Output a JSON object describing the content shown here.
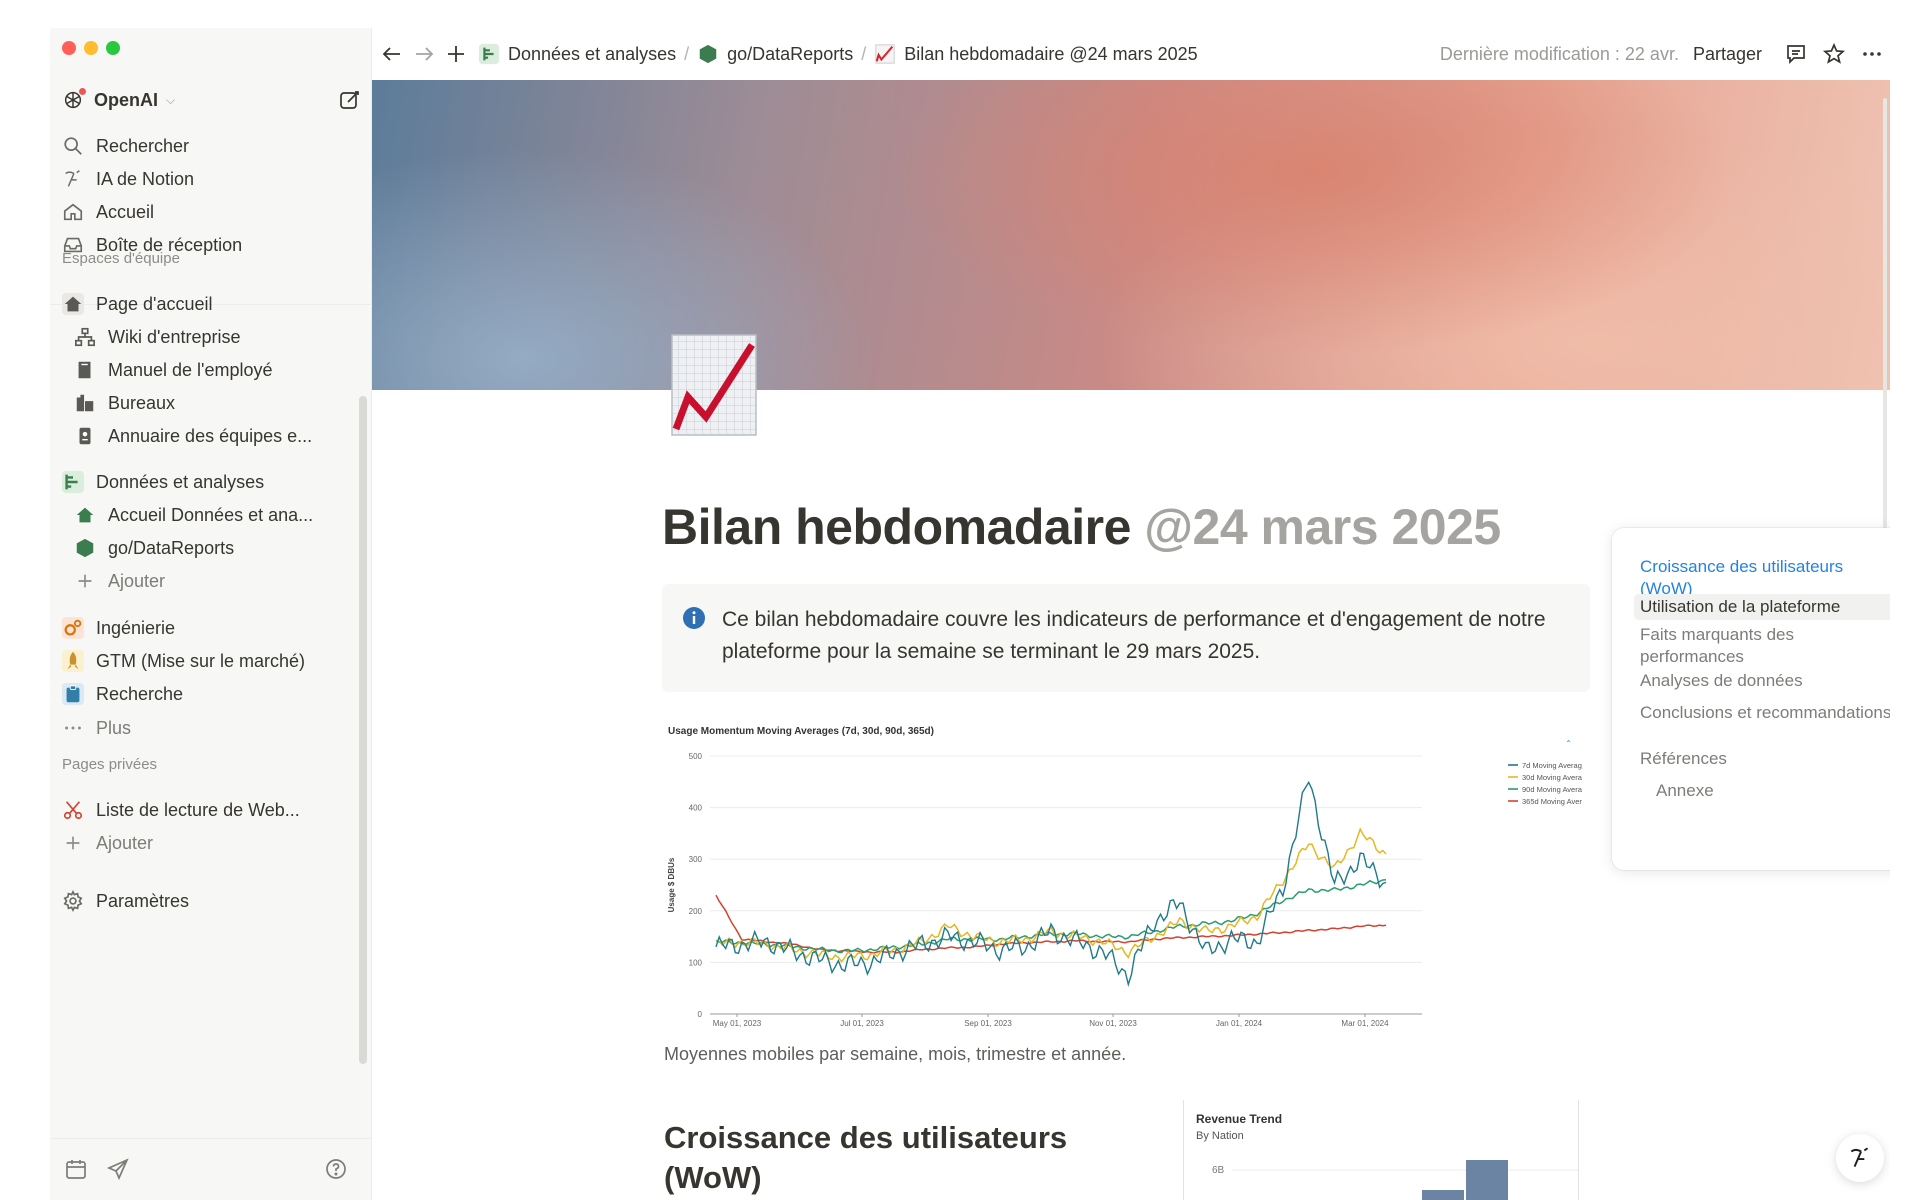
{
  "workspace": {
    "name": "OpenAI"
  },
  "sidebar": {
    "top_items": [
      {
        "label": "Rechercher",
        "icon": "search-icon"
      },
      {
        "label": "IA de Notion",
        "icon": "notion-ai-icon"
      },
      {
        "label": "Accueil",
        "icon": "home-icon"
      },
      {
        "label": "Boîte de réception",
        "icon": "inbox-icon"
      }
    ],
    "teamspaces_label": "Espaces d'équipe",
    "teamspace_items": [
      {
        "label": "Page d'accueil",
        "icon": "house-icon"
      },
      {
        "label": "Wiki d'entreprise",
        "icon": "org-chart-icon"
      },
      {
        "label": "Manuel de l'employé",
        "icon": "book-icon"
      },
      {
        "label": "Bureaux",
        "icon": "office-icon"
      },
      {
        "label": "Annuaire des équipes e...",
        "icon": "directory-icon"
      },
      {
        "label": "Données et analyses",
        "icon": "data-icon"
      },
      {
        "label": "Accueil Données et ana...",
        "icon": "house-icon"
      },
      {
        "label": "go/DataReports",
        "icon": "hexagon-icon"
      },
      {
        "label": "Ajouter",
        "icon": "plus-icon"
      },
      {
        "label": "Ingénierie",
        "icon": "gears-icon"
      },
      {
        "label": "GTM (Mise sur le marché)",
        "icon": "rocket-icon"
      },
      {
        "label": "Recherche",
        "icon": "clipboard-icon"
      },
      {
        "label": "Plus",
        "icon": "more-icon"
      }
    ],
    "private_label": "Pages privées",
    "private_items": [
      {
        "label": "Liste de lecture de Web...",
        "icon": "scissors-icon"
      },
      {
        "label": "Ajouter",
        "icon": "plus-icon"
      }
    ],
    "settings_label": "Paramètres"
  },
  "topbar": {
    "breadcrumbs": [
      {
        "label": "Données et analyses",
        "icon": "data-icon"
      },
      {
        "label": "go/DataReports",
        "icon": "hexagon-icon"
      },
      {
        "label": "Bilan hebdomadaire @24 mars 2025",
        "icon": "chart-emoji-icon"
      }
    ],
    "separator": "/",
    "last_edited": "Dernière modification : 22 avr.",
    "share_label": "Partager"
  },
  "page": {
    "title_main": "Bilan hebdomadaire ",
    "title_mention": "@24 mars 2025",
    "callout_text": "Ce bilan hebdomadaire couvre les indicateurs de performance et d'engagement de notre plateforme pour la semaine se terminant le 29 mars 2025.",
    "caption": "Moyennes mobiles par semaine, mois, trimestre et année.",
    "heading_1": "Croissance des utilisateurs (WoW)"
  },
  "toc": {
    "items": [
      {
        "label": "Croissance des utilisateurs (WoW)",
        "state": "active"
      },
      {
        "label": "Utilisation de la plateforme",
        "state": "current"
      },
      {
        "label": "Faits marquants des performances",
        "state": ""
      },
      {
        "label": "Analyses de données",
        "state": ""
      },
      {
        "label": "Conclusions et recommandations",
        "state": ""
      },
      {
        "label": "Références",
        "state": ""
      },
      {
        "label": "Annexe",
        "state": "sub"
      }
    ]
  },
  "colors": {
    "accent": "#2383e2",
    "series_7d": "#1f7a8c",
    "series_30d": "#e6b722",
    "series_90d": "#2a9d6f",
    "series_365d": "#d2432f"
  },
  "chart_data": [
    {
      "type": "line",
      "title": "Usage Momentum Moving Averages (7d, 30d, 90d, 365d)",
      "ylabel": "Usage $ DBUs",
      "ylim": [
        0,
        500
      ],
      "yticks": [
        0,
        100,
        200,
        300,
        400,
        500
      ],
      "x_tick_labels": [
        "May 01, 2023",
        "Jul 01, 2023",
        "Sep 01, 2023",
        "Nov 01, 2023",
        "Jan 01, 2024",
        "Mar 01, 2024"
      ],
      "x_range": [
        "Apr 2023",
        "Apr 2024"
      ],
      "legend": "top-right",
      "series": [
        {
          "name": "7d Moving Averag",
          "approx_values": [
            130,
            135,
            140,
            120,
            105,
            95,
            100,
            120,
            135,
            150,
            140,
            125,
            130,
            160,
            140,
            120,
            75,
            180,
            215,
            120,
            145,
            140,
            245,
            460,
            250,
            300,
            255
          ]
        },
        {
          "name": "30d Moving Avera",
          "approx_values": [
            135,
            140,
            135,
            125,
            115,
            110,
            115,
            125,
            140,
            170,
            150,
            140,
            145,
            160,
            150,
            140,
            120,
            150,
            180,
            160,
            170,
            190,
            260,
            330,
            280,
            350,
            310
          ]
        },
        {
          "name": "90d Moving Avera",
          "approx_values": [
            140,
            138,
            135,
            130,
            125,
            122,
            125,
            130,
            135,
            145,
            145,
            145,
            150,
            155,
            155,
            150,
            150,
            160,
            170,
            175,
            180,
            195,
            220,
            240,
            240,
            250,
            260
          ]
        },
        {
          "name": "365d Moving Aver",
          "approx_values": [
            230,
            145,
            140,
            135,
            125,
            122,
            120,
            120,
            125,
            128,
            130,
            135,
            138,
            140,
            142,
            140,
            140,
            145,
            148,
            150,
            152,
            155,
            158,
            162,
            165,
            170,
            172
          ]
        }
      ]
    },
    {
      "type": "bar",
      "title": "Revenue Trend",
      "subtitle": "By Nation",
      "y_tick_labels": [
        "6B"
      ]
    }
  ]
}
